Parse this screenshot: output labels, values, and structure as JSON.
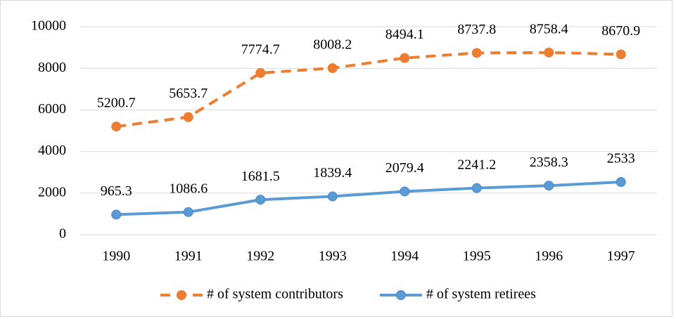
{
  "chart_data": {
    "type": "line",
    "categories": [
      "1990",
      "1991",
      "1992",
      "1993",
      "1994",
      "1995",
      "1996",
      "1997"
    ],
    "series": [
      {
        "name": "# of system contributors",
        "color": "#ed7d31",
        "dashed": true,
        "values": [
          5200.7,
          5653.7,
          7774.7,
          8008.2,
          8494.1,
          8737.8,
          8758.4,
          8670.9
        ]
      },
      {
        "name": "# of system retirees",
        "color": "#5b9bd5",
        "dashed": false,
        "values": [
          965.3,
          1086.6,
          1681.5,
          1839.4,
          2079.4,
          2241.2,
          2358.3,
          2533
        ]
      }
    ],
    "ylim": [
      0,
      10000
    ],
    "yticks": [
      0,
      2000,
      4000,
      6000,
      8000,
      10000
    ],
    "grid": true,
    "legend": "bottom"
  }
}
